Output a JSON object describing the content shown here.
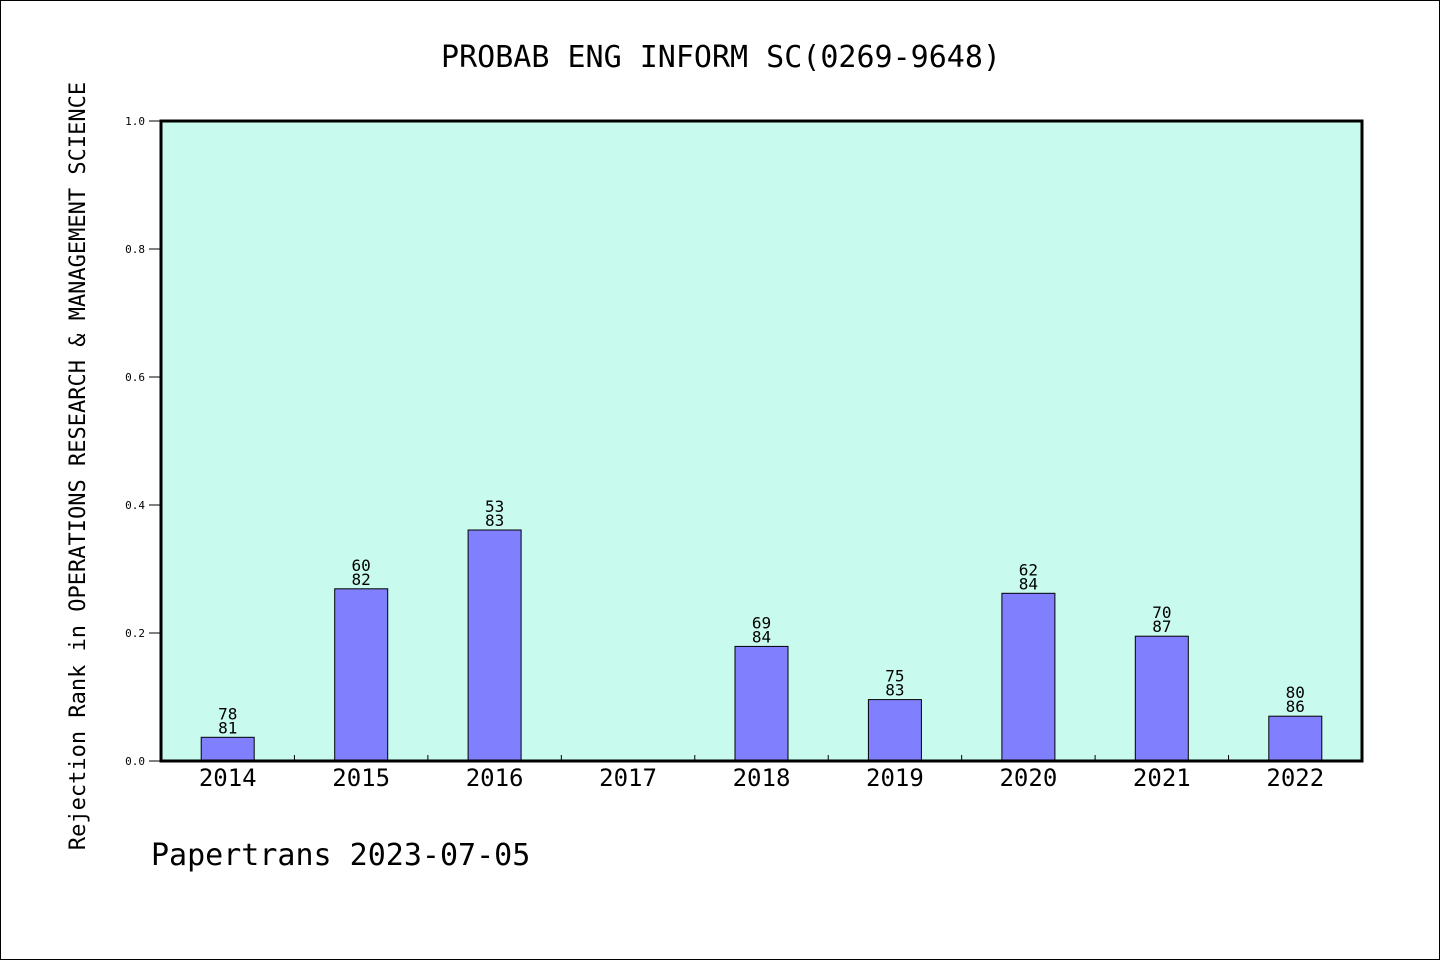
{
  "chart_data": {
    "type": "bar",
    "title": "PROBAB ENG INFORM SC(0269-9648)",
    "ylabel": "Rejection Rank in OPERATIONS RESEARCH & MANAGEMENT SCIENCE",
    "xlabel": "",
    "footer": "Papertrans 2023-07-05",
    "categories": [
      "2014",
      "2015",
      "2016",
      "2017",
      "2018",
      "2019",
      "2020",
      "2021",
      "2022"
    ],
    "values": [
      0.037,
      0.269,
      0.361,
      null,
      0.179,
      0.096,
      0.262,
      0.195,
      0.07
    ],
    "label_top": [
      "78",
      "60",
      "53",
      "",
      "69",
      "75",
      "62",
      "70",
      "80"
    ],
    "label_bottom": [
      "81",
      "82",
      "83",
      "",
      "84",
      "83",
      "84",
      "87",
      "86"
    ],
    "ylim": [
      0,
      1.0
    ],
    "yticks": [
      "0.0",
      "0.2",
      "0.4",
      "0.6",
      "0.8",
      "1.0"
    ],
    "grid": false,
    "legend": "none",
    "colors": {
      "plot_background": "#c8fbee",
      "bar_fill": "#8080ff",
      "bar_stroke": "#000000",
      "text": "#000000"
    }
  }
}
